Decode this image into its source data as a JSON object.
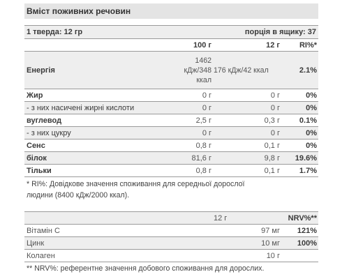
{
  "title": "Вміст поживних речовин",
  "serving": {
    "left": "1 тверда: 12 гр",
    "right": "порція в ящику: 37"
  },
  "header": {
    "c2": "100 г",
    "c3": "12 г",
    "c4": "RI%*"
  },
  "energy": {
    "label": "Енергія",
    "per100_l1": "1462",
    "per100_l2": "кДж/348",
    "per100_l3": "ккал",
    "per12": "176 кДж/42 ккал",
    "ri": "2.1%"
  },
  "rows": [
    {
      "label": "Жир",
      "per100": "0 г",
      "per12": "0 г",
      "ri": "0%"
    },
    {
      "label": "- з них насичені жирні кислоти",
      "per100": "0 г",
      "per12": "0 г",
      "ri": "0%"
    },
    {
      "label": "вуглевод",
      "per100": "2,5 г",
      "per12": "0,3 г",
      "ri": "0.1%"
    },
    {
      "label": "- з них цукру",
      "per100": "0 г",
      "per12": "0 г",
      "ri": "0%"
    },
    {
      "label": "Сенс",
      "per100": "0,8 г",
      "per12": "0,1 г",
      "ri": "0%"
    },
    {
      "label": "білок",
      "per100": "81,6 г",
      "per12": "9,8 г",
      "ri": "19.6%"
    },
    {
      "label": "Тільки",
      "per100": "0,8 г",
      "per12": "0,1 г",
      "ri": "1.7%"
    }
  ],
  "note1_l1": "* RI%: Довідкове значення споживання для середньої дорослої",
  "note1_l2": "людини (8400 кДж/2000 ккал).",
  "vit_header": {
    "c3": "12 г",
    "c4": "NRV%**"
  },
  "vitamins": [
    {
      "label": "Вітамін С",
      "per12": "97 мг",
      "nrv": "121%"
    },
    {
      "label": "Цинк",
      "per12": "10 мг",
      "nrv": "100%"
    },
    {
      "label": "Колаген",
      "per12": "10 г",
      "nrv": ""
    }
  ],
  "note2": "** NRV%: референтне значення добового споживання для дорослих."
}
